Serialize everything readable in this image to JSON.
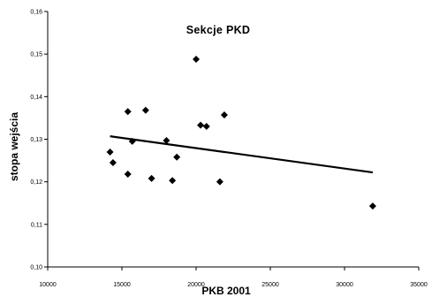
{
  "chart_data": {
    "type": "scatter",
    "title": "Sekcje PKD",
    "xlabel": "PKB 2001",
    "ylabel": "stopa wejścia",
    "xlim": [
      10000,
      35000
    ],
    "ylim": [
      0.1,
      0.16
    ],
    "x_ticks": [
      "10000",
      "15000",
      "20000",
      "25000",
      "30000",
      "35000"
    ],
    "y_ticks": [
      "0,10",
      "0,11",
      "0,12",
      "0,13",
      "0,14",
      "0,15",
      "0,16"
    ],
    "grid": false,
    "legend": "none",
    "marker": "diamond",
    "marker_color": "#000000",
    "points": [
      {
        "x": 14200,
        "y": 0.127
      },
      {
        "x": 14400,
        "y": 0.1245
      },
      {
        "x": 15400,
        "y": 0.1365
      },
      {
        "x": 15400,
        "y": 0.1218
      },
      {
        "x": 15700,
        "y": 0.1295
      },
      {
        "x": 16600,
        "y": 0.1368
      },
      {
        "x": 17000,
        "y": 0.1208
      },
      {
        "x": 18000,
        "y": 0.1297
      },
      {
        "x": 18400,
        "y": 0.1203
      },
      {
        "x": 18700,
        "y": 0.1258
      },
      {
        "x": 20000,
        "y": 0.1488
      },
      {
        "x": 20300,
        "y": 0.1333
      },
      {
        "x": 20700,
        "y": 0.133
      },
      {
        "x": 21600,
        "y": 0.12
      },
      {
        "x": 21900,
        "y": 0.1357
      },
      {
        "x": 31900,
        "y": 0.1143
      }
    ],
    "trendline": {
      "type": "linear",
      "x": [
        14200,
        31900
      ],
      "y": [
        0.1307,
        0.1222
      ]
    }
  }
}
